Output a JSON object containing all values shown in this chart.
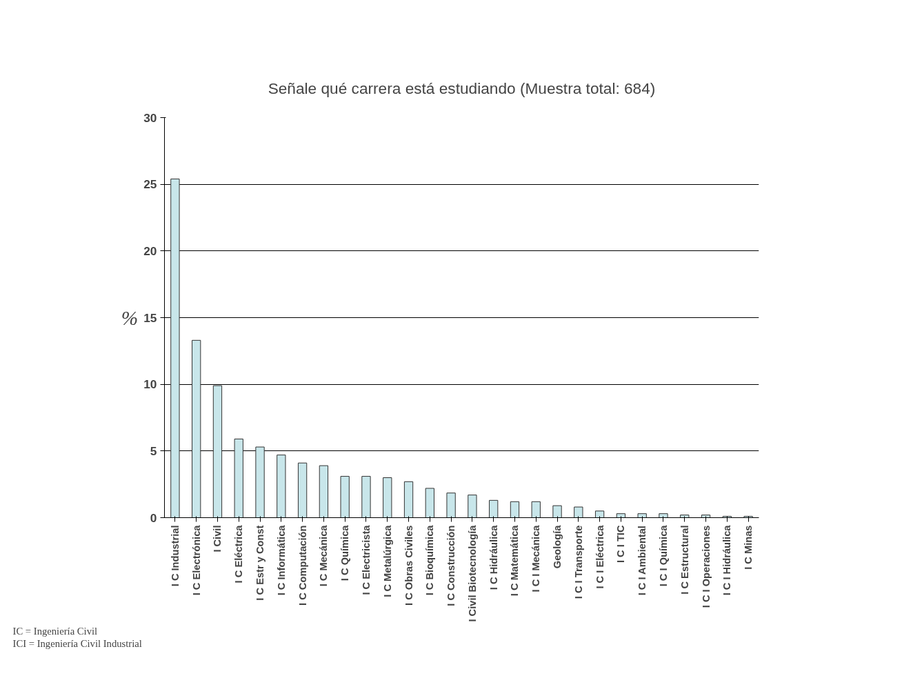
{
  "chart_data": {
    "type": "bar",
    "title": "Señale qué carrera está estudiando (Muestra total: 684)",
    "ylabel": "%",
    "categories": [
      "I C Industrial",
      "I C Electrónica",
      "I Civil",
      "I C Eléctrica",
      "I C Estr y Const",
      "I C Informática",
      "I C Computación",
      "I C Mecánica",
      "I C Química",
      "I C Electricista",
      "I C Metalúrgica",
      "I C Obras Civiles",
      "I C Bioquímica",
      "I C Construcción",
      "I Civil Biotecnología",
      "I C Hidráulica",
      "I C Matemática",
      "I C I Mecánica",
      "Geología",
      "I C I Transporte",
      "I C I Eléctrica",
      "I C I TIC",
      "I C I Ambiental",
      "I C I Química",
      "I C Estructural",
      "I C I Operaciones",
      "I C I Hidráulica",
      "I C Minas"
    ],
    "values": [
      25.4,
      13.3,
      9.9,
      5.9,
      5.3,
      4.7,
      4.1,
      3.9,
      3.1,
      3.1,
      3.0,
      2.7,
      2.2,
      1.85,
      1.7,
      1.3,
      1.2,
      1.2,
      0.9,
      0.8,
      0.5,
      0.3,
      0.3,
      0.3,
      0.2,
      0.2,
      0.1,
      0.1
    ],
    "color": "#c8e6ea",
    "ylim": [
      0,
      30
    ],
    "yticks": [
      0,
      5,
      10,
      15,
      20,
      25,
      30
    ],
    "grid": "y",
    "annotations": [
      "IC = Ingeniería Civil",
      "ICI = Ingeniería Civil Industrial"
    ]
  }
}
